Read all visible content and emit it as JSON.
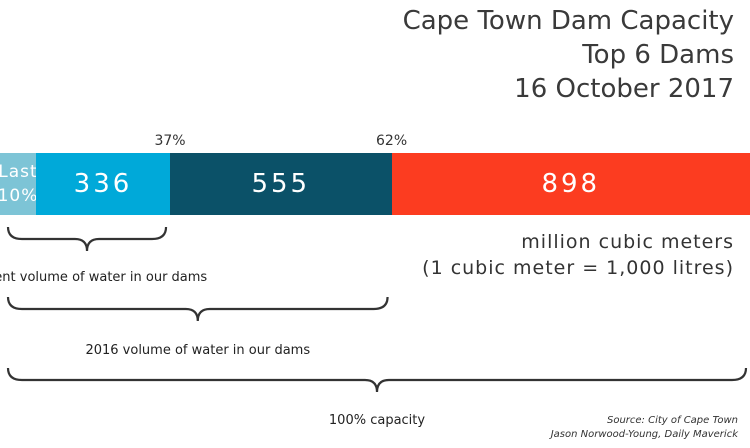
{
  "title": {
    "line1": "Cape Town Dam Capacity",
    "line2": "Top 6 Dams",
    "line3": "16 October 2017"
  },
  "chart_data": {
    "type": "bar",
    "orientation": "horizontal-stacked",
    "segments": [
      {
        "label": "Last 10%",
        "label_line1": "Last",
        "label_line2": "10%",
        "value": 90,
        "color": "#7dc4d6"
      },
      {
        "label": "336",
        "value": 336,
        "color": "#00a9d9"
      },
      {
        "label": "555",
        "value": 555,
        "color": "#0b5168"
      },
      {
        "label": "898",
        "value": 898,
        "color": "#fc3c20"
      }
    ],
    "markers": [
      {
        "label": "37%",
        "after_segment": 1
      },
      {
        "label": "62%",
        "after_segment": 2
      }
    ],
    "units_line1": "million cubic meters",
    "units_line2": "(1 cubic meter = 1,000 litres)",
    "braces": [
      {
        "label": "Current volume of water in our dams",
        "through_segment": 1
      },
      {
        "label": "2016 volume of water in our dams",
        "through_segment": 2
      },
      {
        "label": "100% capacity",
        "through_segment": 3
      }
    ]
  },
  "source": {
    "line1": "Source: City of Cape Town",
    "line2": "Jason Norwood-Young, Daily Maverick"
  }
}
